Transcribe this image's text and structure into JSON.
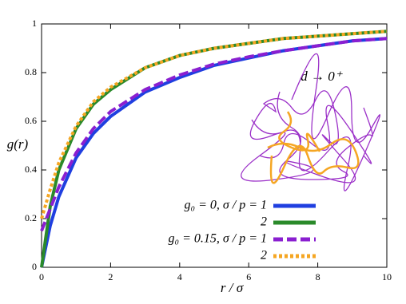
{
  "chart_data": {
    "type": "line",
    "x": [
      0,
      0.25,
      0.5,
      1,
      1.5,
      2,
      3,
      4,
      5,
      6,
      7,
      8,
      9,
      10
    ],
    "series": [
      {
        "name": "g₀ = 0, σ / p = 1",
        "color": "#1f3fe0",
        "style": "solid",
        "values": [
          0,
          0.17,
          0.29,
          0.45,
          0.55,
          0.62,
          0.72,
          0.78,
          0.83,
          0.86,
          0.89,
          0.91,
          0.93,
          0.94
        ]
      },
      {
        "name": "2",
        "color": "#2a8a2a",
        "style": "solid",
        "values": [
          0,
          0.25,
          0.4,
          0.57,
          0.67,
          0.73,
          0.82,
          0.87,
          0.9,
          0.92,
          0.94,
          0.95,
          0.96,
          0.97
        ]
      },
      {
        "name": "g₀ = 0.15, σ / p = 1",
        "color": "#8a1fd0",
        "style": "dashed",
        "values": [
          0.15,
          0.24,
          0.33,
          0.47,
          0.57,
          0.64,
          0.73,
          0.79,
          0.835,
          0.865,
          0.89,
          0.91,
          0.93,
          0.94
        ]
      },
      {
        "name": "2",
        "color": "#f5a623",
        "style": "dotted",
        "values": [
          0.2,
          0.32,
          0.43,
          0.58,
          0.68,
          0.74,
          0.82,
          0.87,
          0.9,
          0.92,
          0.94,
          0.95,
          0.96,
          0.97
        ]
      }
    ],
    "xlabel": "r / σ",
    "ylabel": "g(r)",
    "annotation": "d → 0⁺",
    "xlim": [
      0,
      10
    ],
    "ylim": [
      0,
      1
    ],
    "xticks": [
      0,
      2,
      4,
      6,
      8,
      10
    ],
    "yticks": [
      0,
      0.2,
      0.4,
      0.6,
      0.8,
      1
    ]
  }
}
